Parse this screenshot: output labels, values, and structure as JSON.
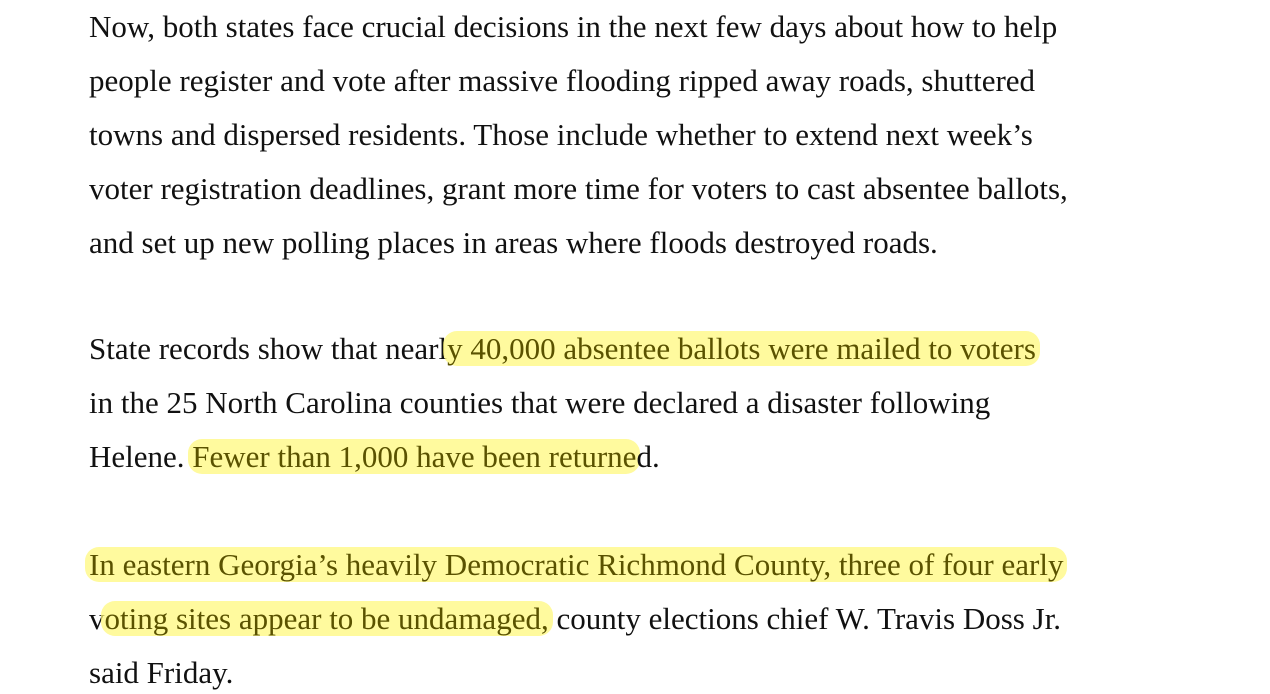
{
  "article": {
    "paragraphs": [
      {
        "lines": [
          "Now, both states face crucial decisions in the next few days about how to help",
          "people register and vote after massive flooding ripped away roads, shuttered",
          "towns and dispersed residents. Those include whether to extend next week’s",
          "voter registration deadlines, grant more time for voters to cast absentee ballots,",
          "and set up new polling places in areas where floods destroyed roads."
        ]
      },
      {
        "line1_pre": "State records show that nearl",
        "line1_hl": "y 40,000 absentee ballots were mailed to voters",
        "line2": "in the 25 North Carolina counties that were declared a disaster following",
        "line3_pre": "Helene. ",
        "line3_hl": "Fewer than 1,000 have been returne",
        "line3_post": "d."
      },
      {
        "line1_hl": "In eastern Georgia’s heavily Democratic Richmond County, three of four early",
        "line2_pre": "v",
        "line2_hl": "oting sites appear to be undamaged,",
        "line2_post": " county elections chief W. Travis Doss Jr.",
        "line3": "said Friday."
      }
    ]
  },
  "colors": {
    "highlight": "#fff878",
    "text": "#111111"
  }
}
